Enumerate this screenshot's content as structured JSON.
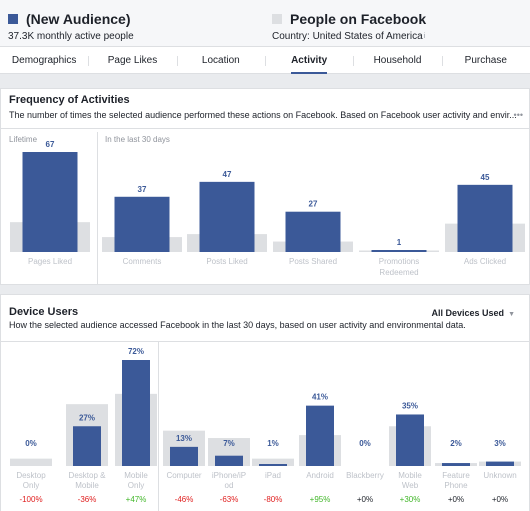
{
  "header": {
    "audience_a": {
      "title": "(New Audience)",
      "subtitle": "37.3K monthly active people",
      "color": "#3b5998"
    },
    "audience_b": {
      "title": "People on Facebook",
      "subtitle": "Country: United States of America",
      "color": "#dddfe2",
      "info_icon": "info-icon"
    }
  },
  "tabs": [
    {
      "label": "Demographics",
      "active": false
    },
    {
      "label": "Page Likes",
      "active": false
    },
    {
      "label": "Location",
      "active": false
    },
    {
      "label": "Activity",
      "active": true
    },
    {
      "label": "Household",
      "active": false
    },
    {
      "label": "Purchase",
      "active": false
    }
  ],
  "frequency": {
    "title": "Frequency of Activities",
    "subtitle": "The number of times the selected audience performed these actions on Facebook. Based on Facebook user activity and envir...",
    "more_icon": "ellipsis-icon"
  },
  "devices": {
    "title": "Device Users",
    "subtitle": "How the selected audience accessed Facebook in the last 30 days, based on user activity and environmental data.",
    "dropdown_label": "All Devices Used",
    "dropdown_icon": "chevron-down-icon"
  },
  "colors": {
    "audience": "#3b5998",
    "baseline": "#dddfe2",
    "positive": "#42b72a",
    "negative": "#e02020",
    "neutral": "#1d2129"
  },
  "chart_data": [
    {
      "type": "bar",
      "title": "Frequency of Activities",
      "groups": [
        {
          "label": "Lifetime",
          "categories": [
            "Pages Liked"
          ]
        },
        {
          "label": "In the last 30 days",
          "categories": [
            "Comments",
            "Posts Liked",
            "Posts Shared",
            "Promotions Redeemed",
            "Ads Clicked"
          ]
        }
      ],
      "categories": [
        "Pages Liked",
        "Comments",
        "Posts Liked",
        "Posts Shared",
        "Promotions Redeemed",
        "Ads Clicked"
      ],
      "series": [
        {
          "name": "(New Audience)",
          "values": [
            67,
            37,
            47,
            27,
            1,
            45
          ]
        },
        {
          "name": "People on Facebook",
          "values": [
            20,
            10,
            12,
            7,
            1,
            19
          ]
        }
      ],
      "data_labels": [
        "67",
        "37",
        "47",
        "27",
        "1",
        "45"
      ]
    },
    {
      "type": "bar",
      "title": "Device Users",
      "categories": [
        "Desktop Only",
        "Desktop & Mobile",
        "Mobile Only",
        "Computer",
        "iPhone/iPod",
        "iPad",
        "Android",
        "Blackberry",
        "Mobile Web",
        "Feature Phone",
        "Unknown"
      ],
      "category_labels": [
        "Desktop Only",
        "Desktop & Mobile",
        "Mobile Only",
        "Computer",
        "iPhone/iP od",
        "iPad",
        "Android",
        "Blackberry",
        "Mobile Web",
        "Feature Phone",
        "Unknown"
      ],
      "series": [
        {
          "name": "(New Audience)",
          "unit": "%",
          "values": [
            0,
            27,
            72,
            13,
            7,
            1,
            41,
            0,
            35,
            2,
            3
          ]
        },
        {
          "name": "People on Facebook",
          "unit": "%",
          "values": [
            5,
            42,
            49,
            24,
            19,
            5,
            21,
            0,
            27,
            2,
            3
          ]
        }
      ],
      "data_labels": [
        "0%",
        "27%",
        "72%",
        "13%",
        "7%",
        "1%",
        "41%",
        "0%",
        "35%",
        "2%",
        "3%"
      ],
      "differences": [
        "-100%",
        "-36%",
        "+47%",
        "-46%",
        "-63%",
        "-80%",
        "+95%",
        "+0%",
        "+30%",
        "+0%",
        "+0%"
      ]
    }
  ]
}
